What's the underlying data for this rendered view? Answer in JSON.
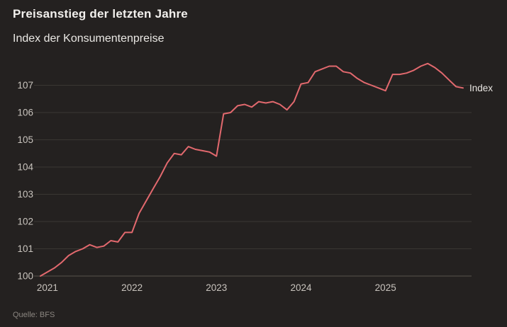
{
  "header": {
    "title": "Preisanstieg der letzten Jahre",
    "subtitle": "Index der Konsumentenpreise"
  },
  "footer": {
    "source_label": "Quelle: BFS"
  },
  "colors": {
    "background": "#242120",
    "line": "#e2696e",
    "grid": "#3a3733",
    "baseline": "#57524c",
    "tick_text": "#c8c3bd",
    "title_text": "#f2f0ed",
    "subtitle_text": "#eae8e4",
    "series_label_text": "#e9e6e2",
    "source_text": "#8b8680"
  },
  "chart_data": {
    "type": "line",
    "title": "Preisanstieg der letzten Jahre",
    "subtitle": "Index der Konsumentenpreise",
    "series_label": "Index",
    "grid": true,
    "legend_position": "right-end-of-line",
    "ylim": [
      100,
      107.9
    ],
    "y_ticks": [
      100,
      101,
      102,
      103,
      104,
      105,
      106,
      107
    ],
    "x_tick_labels": [
      "2021",
      "2022",
      "2023",
      "2024",
      "2025"
    ],
    "x": [
      "2020-12",
      "2021-01",
      "2021-02",
      "2021-03",
      "2021-04",
      "2021-05",
      "2021-06",
      "2021-07",
      "2021-08",
      "2021-09",
      "2021-10",
      "2021-11",
      "2021-12",
      "2022-01",
      "2022-02",
      "2022-03",
      "2022-04",
      "2022-05",
      "2022-06",
      "2022-07",
      "2022-08",
      "2022-09",
      "2022-10",
      "2022-11",
      "2022-12",
      "2023-01",
      "2023-02",
      "2023-03",
      "2023-04",
      "2023-05",
      "2023-06",
      "2023-07",
      "2023-08",
      "2023-09",
      "2023-10",
      "2023-11",
      "2023-12",
      "2024-01",
      "2024-02",
      "2024-03",
      "2024-04",
      "2024-05",
      "2024-06",
      "2024-07",
      "2024-08",
      "2024-09",
      "2024-10",
      "2024-11",
      "2024-12",
      "2025-01",
      "2025-02",
      "2025-03",
      "2025-04",
      "2025-05",
      "2025-06",
      "2025-07",
      "2025-08",
      "2025-09",
      "2025-10",
      "2025-11",
      "2025-12"
    ],
    "values": [
      100.0,
      100.15,
      100.3,
      100.5,
      100.75,
      100.9,
      101.0,
      101.15,
      101.05,
      101.1,
      101.3,
      101.25,
      101.6,
      101.6,
      102.3,
      102.75,
      103.2,
      103.65,
      104.15,
      104.5,
      104.45,
      104.75,
      104.65,
      104.6,
      104.55,
      104.4,
      105.95,
      106.0,
      106.25,
      106.3,
      106.2,
      106.4,
      106.35,
      106.4,
      106.3,
      106.1,
      106.4,
      107.05,
      107.1,
      107.5,
      107.6,
      107.7,
      107.7,
      107.5,
      107.45,
      107.25,
      107.1,
      107.0,
      106.9,
      106.8,
      107.4,
      107.4,
      107.45,
      107.55,
      107.7,
      107.8,
      107.65,
      107.45,
      107.2,
      106.95,
      106.9
    ]
  }
}
